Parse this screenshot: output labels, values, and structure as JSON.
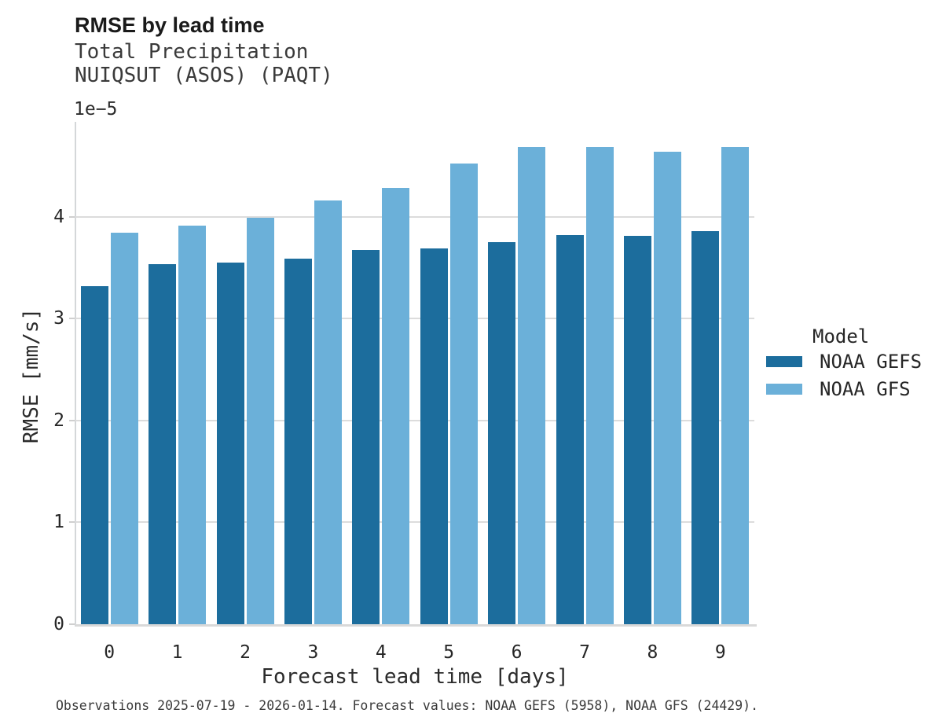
{
  "header": {
    "title": "RMSE by lead time",
    "subtitle_line1": "Total Precipitation",
    "subtitle_line2": "NUIQSUT (ASOS) (PAQT)"
  },
  "chart_data": {
    "type": "bar",
    "title": "RMSE by lead time",
    "subtitle": [
      "Total Precipitation",
      "NUIQSUT (ASOS) (PAQT)"
    ],
    "xlabel": "Forecast lead time [days]",
    "ylabel": "RMSE [mm/s]",
    "y_offset_label": "1e−5",
    "value_scale": "1e-5",
    "categories": [
      "0",
      "1",
      "2",
      "3",
      "4",
      "5",
      "6",
      "7",
      "8",
      "9"
    ],
    "series": [
      {
        "name": "NOAA GEFS",
        "color": "#1c6d9d",
        "values": [
          3.32,
          3.53,
          3.55,
          3.59,
          3.67,
          3.69,
          3.75,
          3.82,
          3.81,
          3.86
        ]
      },
      {
        "name": "NOAA GFS",
        "color": "#6bb0d9",
        "values": [
          3.84,
          3.91,
          3.99,
          4.16,
          4.28,
          4.52,
          4.68,
          4.68,
          4.64,
          4.68
        ]
      }
    ],
    "ylim": [
      0,
      4.93
    ],
    "yticks": [
      0,
      1,
      2,
      3,
      4
    ],
    "grid": "horizontal",
    "legend_position": "right-center"
  },
  "legend": {
    "title": "Model"
  },
  "footer": {
    "caption": "Observations 2025-07-19 - 2026-01-14. Forecast values: NOAA GEFS (5958), NOAA GFS (24429)."
  }
}
